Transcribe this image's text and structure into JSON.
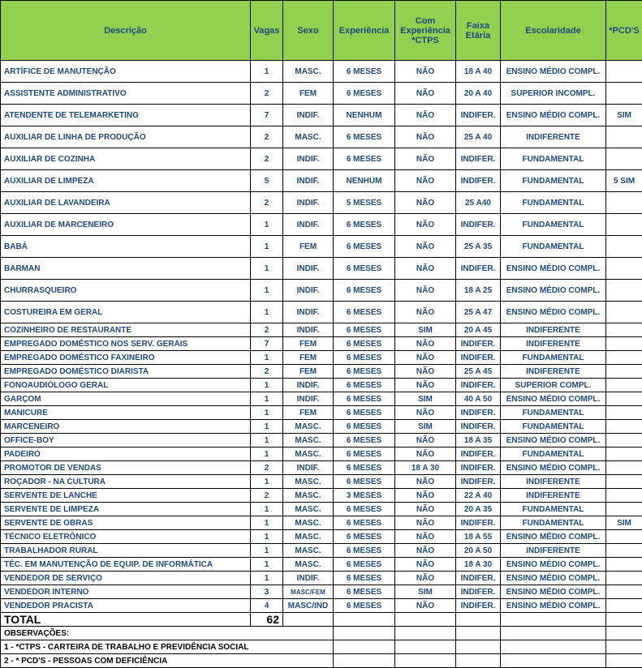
{
  "colors": {
    "header_bg": "#92d050",
    "header_text": "#1f497d",
    "row_text": "#1f497d"
  },
  "headers": [
    "Descrição",
    "Vagas",
    "Sexo",
    "Experiência",
    "Com Experiência *CTPS",
    "Faixa Etária",
    "Escolaridade",
    "*PCD'S"
  ],
  "rows": [
    {
      "compact": false,
      "cells": [
        "ARTÍFICE DE MANUTENÇÃO",
        "1",
        "MASC.",
        "6 MESES",
        "NÃO",
        "18 A 40",
        "ENSINO MÉDIO COMPL.",
        ""
      ]
    },
    {
      "compact": false,
      "cells": [
        "ASSISTENTE ADMINISTRATIVO",
        "2",
        "FEM",
        "6 MESES",
        "NÃO",
        "20 A 40",
        "SUPERIOR INCOMPL.",
        ""
      ]
    },
    {
      "compact": false,
      "cells": [
        "ATENDENTE DE TELEMARKETING",
        "7",
        "INDIF.",
        "NENHUM",
        "NÃO",
        "INDIFER.",
        "ENSINO MÉDIO COMPL.",
        "SIM"
      ]
    },
    {
      "compact": false,
      "cells": [
        "AUXILIAR DE LINHA DE PRODUÇÃO",
        "2",
        "MASC.",
        "6 MESES",
        "NÃO",
        "25 A 40",
        "INDIFERENTE",
        ""
      ]
    },
    {
      "compact": false,
      "cells": [
        "AUXILIAR DE COZINHA",
        "2",
        "INDIF.",
        "6 MESES",
        "NÃO",
        "INDIFER.",
        "FUNDAMENTAL",
        ""
      ]
    },
    {
      "compact": false,
      "cells": [
        "AUXILIAR DE LIMPEZA",
        "5",
        "INDIF.",
        "NENHUM",
        "NÃO",
        "INDIFER.",
        "FUNDAMENTAL",
        "5 SIM"
      ]
    },
    {
      "compact": false,
      "cells": [
        "AUXILIAR DE LAVANDEIRA",
        "2",
        "INDIF.",
        "5 MESES",
        "NÃO",
        "25 A40",
        "FUNDAMENTAL",
        ""
      ]
    },
    {
      "compact": false,
      "cells": [
        "AUXILIAR DE MARCENEIRO",
        "1",
        "INDIF.",
        "6 MESES",
        "NÃO",
        "INDIFER.",
        "FUNDAMENTAL",
        ""
      ]
    },
    {
      "compact": false,
      "cells": [
        "BABÁ",
        "1",
        "FEM",
        "6 MESES",
        "NÃO",
        "25 A 35",
        "FUNDAMENTAL",
        ""
      ]
    },
    {
      "compact": false,
      "cells": [
        "BARMAN",
        "1",
        "INDIF.",
        "6 MESES",
        "NÃO",
        "INDIFER.",
        "ENSINO MÉDIO COMPL.",
        ""
      ]
    },
    {
      "compact": false,
      "cells": [
        "CHURRASQUEIRO",
        "1",
        "INDIF.",
        "6 MESES",
        "NÃO",
        "18 A 25",
        "ENSINO MÉDIO COMPL.",
        ""
      ]
    },
    {
      "compact": false,
      "cells": [
        "COSTUREIRA EM GERAL",
        "1",
        "INDIF.",
        "6 MESES",
        "NÃO",
        "25 A 47",
        "ENSINO MÉDIO COMPL.",
        ""
      ]
    },
    {
      "compact": true,
      "cells": [
        "COZINHEIRO DE RESTAURANTE",
        "2",
        "INDIF.",
        "6 MESES",
        "SIM",
        "20 A 45",
        "INDIFERENTE",
        ""
      ]
    },
    {
      "compact": true,
      "cells": [
        "EMPREGADO DOMÉSTICO NOS SERV. GERAIS",
        "7",
        "FEM",
        "6 MESES",
        "NÃO",
        "INDIFER.",
        "INDIFERENTE",
        ""
      ]
    },
    {
      "compact": true,
      "cells": [
        "EMPREGADO DOMÉSTICO FAXINEIRO",
        "1",
        "FEM",
        "6 MESES",
        "NÃO",
        "INDIFER.",
        "FUNDAMENTAL",
        ""
      ]
    },
    {
      "compact": true,
      "cells": [
        "EMPREGADO DOMÉSTICO DIARISTA",
        "2",
        "FEM",
        "6 MESES",
        "NÃO",
        "25 A 45",
        "INDIFERENTE",
        ""
      ]
    },
    {
      "compact": true,
      "cells": [
        "FONOAUDIÓLOGO GERAL",
        "1",
        "INDIF.",
        "6 MESES",
        "NÃO",
        "INDIFER.",
        "SUPERIOR COMPL.",
        ""
      ]
    },
    {
      "compact": true,
      "cells": [
        "GARÇOM",
        "1",
        "INDIF.",
        "6 MESES",
        "SIM",
        "40 A 50",
        "ENSINO MÉDIO COMPL.",
        ""
      ]
    },
    {
      "compact": true,
      "cells": [
        "MANICURE",
        "1",
        "FEM",
        "6 MESES",
        "NÃO",
        "INDIFER.",
        "FUNDAMENTAL",
        ""
      ]
    },
    {
      "compact": true,
      "cells": [
        "MARCENEIRO",
        "1",
        "MASC.",
        "6 MESES",
        "SIM",
        "INDIFER.",
        "FUNDAMENTAL",
        ""
      ]
    },
    {
      "compact": true,
      "cells": [
        "OFFICE-BOY",
        "1",
        "MASC.",
        "6 MESES",
        "NÃO",
        "18 A 35",
        "ENSINO MÉDIO COMPL.",
        ""
      ]
    },
    {
      "compact": true,
      "cells": [
        "PADEIRO",
        "1",
        "MASC.",
        "6 MESES",
        "NÃO",
        "INDIFER.",
        "FUNDAMENTAL",
        ""
      ]
    },
    {
      "compact": true,
      "cells": [
        "PROMOTOR DE VENDAS",
        "2",
        "INDIF.",
        "6 MESES",
        "18 A 30",
        "INDIFER.",
        "ENSINO MÉDIO COMPL.",
        ""
      ]
    },
    {
      "compact": true,
      "cells": [
        "ROÇADOR - NA CULTURA",
        "1",
        "MASC.",
        "6 MESES",
        "NÃO",
        "INDIFER.",
        "INDIFERENTE",
        ""
      ]
    },
    {
      "compact": true,
      "cells": [
        "SERVENTE DE LANCHE",
        "2",
        "MASC.",
        "3 MESES",
        "NÃO",
        "22 A 40",
        "INDIFERENTE",
        ""
      ]
    },
    {
      "compact": true,
      "cells": [
        "SERVENTE DE LIMPEZA",
        "1",
        "MASC.",
        "6 MESES",
        "NÃO",
        "20 A 35",
        "FUNDAMENTAL",
        ""
      ]
    },
    {
      "compact": true,
      "cells": [
        "SERVENTE DE OBRAS",
        "1",
        "MASC.",
        "6 MESES",
        "NÃO",
        "INDIFER.",
        "FUNDAMENTAL",
        "SIM"
      ]
    },
    {
      "compact": true,
      "cells": [
        "TÉCNICO ELETRÔNICO",
        "1",
        "MASC.",
        "6 MESES",
        "NÃO",
        "18 A 55",
        "ENSINO MÉDIO COMPL.",
        ""
      ]
    },
    {
      "compact": true,
      "cells": [
        "TRABALHADOR RURAL",
        "1",
        "MASC.",
        "6 MESES",
        "NÃO",
        "20 A 50",
        "INDIFERENTE",
        ""
      ]
    },
    {
      "compact": true,
      "cells": [
        "TÉC. EM MANUTENÇÃO DE EQUIP. DE INFORMÁTICA",
        "1",
        "MASC.",
        "6 MESES",
        "NÃO",
        "18 A 30",
        "ENSINO MÉDIO COMPL.",
        ""
      ]
    },
    {
      "compact": true,
      "cells": [
        "VENDEDOR DE SERVIÇO",
        "1",
        "INDIF.",
        "6 MESES",
        "NÃO",
        "INDIFER.",
        "ENSINO MÉDIO COMPL.",
        ""
      ]
    },
    {
      "compact": true,
      "cells": [
        "VENDEDOR INTERNO",
        "3",
        "MASC/FEM",
        "6 MESES",
        "SIM",
        "INDIFER.",
        "ENSINO MÉDIO COMPL.",
        ""
      ],
      "tinySexo": true
    },
    {
      "compact": true,
      "cells": [
        "VENDEDOR PRACISTA",
        "4",
        "MASC/IND",
        "6 MESES",
        "NÃO",
        "INDIFER.",
        "ENSINO MÉDIO COMPL.",
        ""
      ]
    }
  ],
  "total": {
    "label": "TOTAL",
    "value": "62"
  },
  "observations": [
    "OBSERVAÇÕES:",
    "1 - *CTPS - CARTEIRA DE TRABALHO E PREVIDÊNCIA SOCIAL",
    "2 - * PCD'S - PESSOAS COM DEFICIÊNCIA"
  ]
}
